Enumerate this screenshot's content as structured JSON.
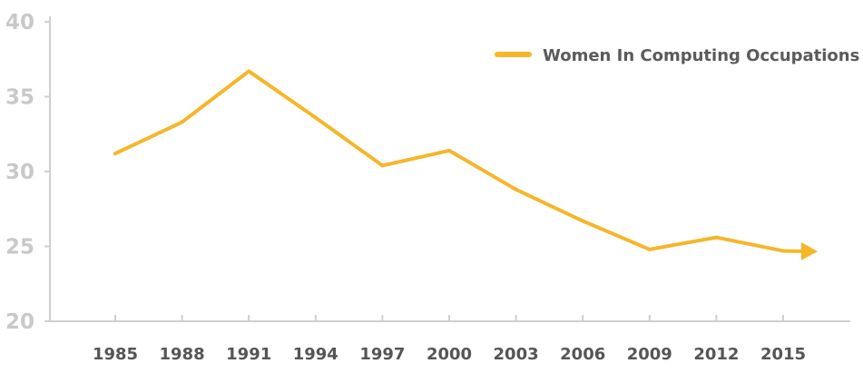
{
  "chart_data": {
    "type": "line",
    "title": "",
    "xlabel": "",
    "ylabel": "",
    "categories": [
      "1985",
      "1988",
      "1991",
      "1994",
      "1997",
      "2000",
      "2003",
      "2006",
      "2009",
      "2012",
      "2015"
    ],
    "ylim": [
      20,
      40
    ],
    "yticks": [
      "20",
      "25",
      "30",
      "35",
      "40"
    ],
    "series": [
      {
        "name": "Women In Computing Occupations",
        "color": "#f5b62a",
        "values": [
          31.2,
          33.3,
          36.7,
          33.6,
          30.4,
          31.4,
          28.8,
          26.7,
          24.8,
          25.6,
          24.7
        ]
      }
    ],
    "trend_arrow": true,
    "grid": false,
    "legend": "top-right"
  }
}
